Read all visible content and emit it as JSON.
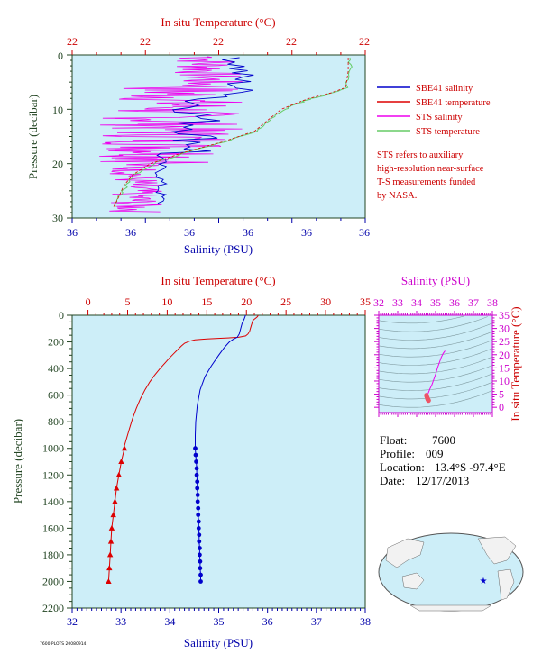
{
  "colors": {
    "plot_bg": "#cdeef8",
    "salinity": "#0000cc",
    "temperature": "#dd0000",
    "sts_salinity": "#ee00ee",
    "sts_temperature": "#66cc66",
    "axis_red": "#cc0000",
    "axis_blue": "#0000aa",
    "axis_magenta": "#cc00cc",
    "axis_green": "#224422",
    "land": "#f2f2f2",
    "ocean": "#cdeef8"
  },
  "chart_data": [
    {
      "type": "line",
      "title": "",
      "top_axis_label": "In situ Temperature (°C)",
      "top_tick_labels": [
        "22",
        "22",
        "22",
        "22",
        "22"
      ],
      "bottom_axis_label": "Salinity (PSU)",
      "bottom_tick_labels": [
        "36",
        "36",
        "36",
        "36",
        "36",
        "36"
      ],
      "left_axis_label": "Pressure (decibar)",
      "left_tick_labels": [
        "0",
        "10",
        "20",
        "30"
      ],
      "ylim": [
        0,
        30
      ],
      "legend": [
        {
          "name": "SBE41 salinity",
          "color": "#0000cc"
        },
        {
          "name": "SBE41 temperature",
          "color": "#dd0000"
        },
        {
          "name": "STS salinity",
          "color": "#ee00ee"
        },
        {
          "name": "STS temperature",
          "color": "#66cc66"
        }
      ],
      "note": [
        "STS refers to auxiliary",
        "high-resolution near-surface",
        "T-S measurements funded",
        "by NASA."
      ]
    },
    {
      "type": "line",
      "title": "",
      "top_axis_label": "In situ Temperature (°C)",
      "top_tick_labels": [
        "0",
        "5",
        "10",
        "15",
        "20",
        "25",
        "30",
        "35"
      ],
      "xlim_temperature": [
        -2,
        35
      ],
      "bottom_axis_label": "Salinity (PSU)",
      "bottom_tick_labels": [
        "32",
        "33",
        "34",
        "35",
        "36",
        "37",
        "38"
      ],
      "xlim_salinity": [
        32,
        38
      ],
      "left_axis_label": "Pressure (decibar)",
      "left_tick_labels": [
        "0",
        "200",
        "400",
        "600",
        "800",
        "1000",
        "1200",
        "1400",
        "1600",
        "1800",
        "2000",
        "2200"
      ],
      "ylim": [
        2200,
        0
      ],
      "series": [
        {
          "name": "Temperature",
          "color": "#dd0000",
          "points": [
            [
              21.5,
              0
            ],
            [
              21.4,
              10
            ],
            [
              21.2,
              20
            ],
            [
              21.0,
              30
            ],
            [
              20.8,
              40
            ],
            [
              20.7,
              60
            ],
            [
              20.6,
              80
            ],
            [
              20.5,
              100
            ],
            [
              20.4,
              120
            ],
            [
              20.2,
              140
            ],
            [
              19.9,
              155
            ],
            [
              19.0,
              165
            ],
            [
              17.0,
              172
            ],
            [
              15.0,
              178
            ],
            [
              13.5,
              185
            ],
            [
              12.8,
              195
            ],
            [
              12.2,
              210
            ],
            [
              11.8,
              230
            ],
            [
              11.3,
              260
            ],
            [
              10.8,
              290
            ],
            [
              10.3,
              320
            ],
            [
              9.7,
              360
            ],
            [
              9.1,
              400
            ],
            [
              8.4,
              450
            ],
            [
              7.8,
              500
            ],
            [
              7.2,
              560
            ],
            [
              6.6,
              630
            ],
            [
              6.1,
              700
            ],
            [
              5.6,
              780
            ],
            [
              5.2,
              860
            ],
            [
              4.8,
              940
            ],
            [
              4.5,
              1000
            ]
          ],
          "markers": [
            [
              4.6,
              1000
            ],
            [
              4.2,
              1100
            ],
            [
              3.9,
              1200
            ],
            [
              3.6,
              1300
            ],
            [
              3.4,
              1400
            ],
            [
              3.2,
              1500
            ],
            [
              3.0,
              1600
            ],
            [
              2.9,
              1700
            ],
            [
              2.8,
              1800
            ],
            [
              2.7,
              1900
            ],
            [
              2.6,
              2000
            ]
          ]
        },
        {
          "name": "Salinity",
          "color": "#0000cc",
          "points": [
            [
              35.55,
              0
            ],
            [
              35.52,
              30
            ],
            [
              35.48,
              60
            ],
            [
              35.45,
              100
            ],
            [
              35.42,
              140
            ],
            [
              35.38,
              165
            ],
            [
              35.3,
              180
            ],
            [
              35.22,
              200
            ],
            [
              35.12,
              240
            ],
            [
              35.0,
              300
            ],
            [
              34.85,
              380
            ],
            [
              34.72,
              460
            ],
            [
              34.62,
              560
            ],
            [
              34.56,
              680
            ],
            [
              34.53,
              800
            ],
            [
              34.52,
              900
            ],
            [
              34.52,
              1000
            ]
          ],
          "markers": [
            [
              34.52,
              1000
            ],
            [
              34.53,
              1050
            ],
            [
              34.54,
              1100
            ],
            [
              34.55,
              1150
            ],
            [
              34.55,
              1200
            ],
            [
              34.56,
              1250
            ],
            [
              34.56,
              1300
            ],
            [
              34.57,
              1350
            ],
            [
              34.57,
              1400
            ],
            [
              34.58,
              1450
            ],
            [
              34.58,
              1500
            ],
            [
              34.59,
              1550
            ],
            [
              34.59,
              1600
            ],
            [
              34.6,
              1650
            ],
            [
              34.6,
              1700
            ],
            [
              34.61,
              1750
            ],
            [
              34.61,
              1800
            ],
            [
              34.62,
              1850
            ],
            [
              34.62,
              1900
            ],
            [
              34.63,
              1950
            ],
            [
              34.63,
              2000
            ]
          ]
        }
      ]
    },
    {
      "type": "scatter",
      "title": "",
      "top_axis_label": "Salinity (PSU)",
      "top_tick_labels": [
        "32",
        "33",
        "34",
        "35",
        "36",
        "37",
        "38"
      ],
      "xlim": [
        32,
        38
      ],
      "right_axis_label": "In situ Temperature (°C)",
      "right_tick_labels": [
        "0",
        "5",
        "10",
        "15",
        "20",
        "25",
        "30",
        "35"
      ],
      "ylim": [
        -2,
        35
      ],
      "series": [
        {
          "name": "T-S",
          "color": "#ee2266",
          "points": [
            [
              35.5,
              21.5
            ],
            [
              35.4,
              20.5
            ],
            [
              35.3,
              19.0
            ],
            [
              35.2,
              17.0
            ],
            [
              35.1,
              15.0
            ],
            [
              35.0,
              12.5
            ],
            [
              34.9,
              10.5
            ],
            [
              34.8,
              8.5
            ],
            [
              34.7,
              7.0
            ],
            [
              34.62,
              5.5
            ],
            [
              34.56,
              4.5
            ]
          ],
          "markers": [
            [
              34.52,
              4.6
            ],
            [
              34.53,
              4.2
            ],
            [
              34.55,
              3.9
            ],
            [
              34.56,
              3.6
            ],
            [
              34.57,
              3.4
            ],
            [
              34.58,
              3.2
            ],
            [
              34.59,
              3.0
            ],
            [
              34.6,
              2.9
            ],
            [
              34.61,
              2.8
            ],
            [
              34.62,
              2.7
            ],
            [
              34.63,
              2.6
            ]
          ]
        }
      ]
    }
  ],
  "info": {
    "float_label": "Float:",
    "float_value": "7600",
    "profile_label": "Profile:",
    "profile_value": "009",
    "location_label": "Location:",
    "location_value": "13.4°S  -97.4°E",
    "date_label": "Date:",
    "date_value": "12/17/2013"
  },
  "footer": "7600 PLOTS 20080914"
}
